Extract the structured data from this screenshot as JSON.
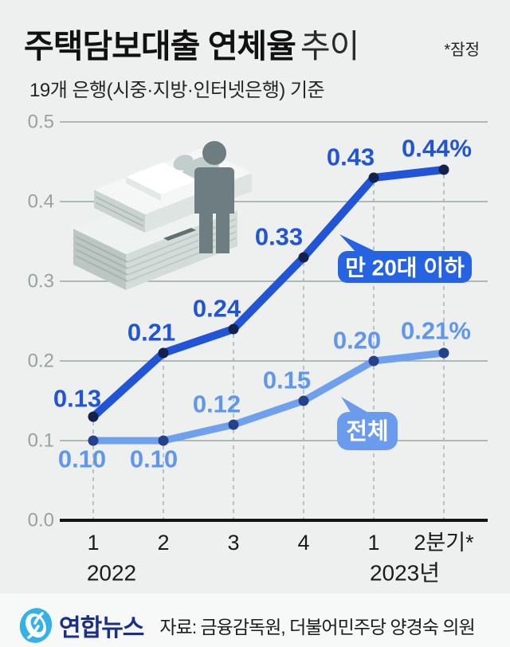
{
  "header": {
    "title_bold": "주택담보대출 연체율",
    "title_light": "추이",
    "note": "*잠정",
    "subtitle": "19개 은행(시중·지방·인터넷은행) 기준"
  },
  "chart_data": {
    "type": "line",
    "unit": "%",
    "categories": [
      "1",
      "2",
      "3",
      "4",
      "1",
      "2분기*"
    ],
    "group_labels": [
      {
        "label": "2022",
        "tick_index": 0
      },
      {
        "label": "2023년",
        "tick_index": 4
      }
    ],
    "y_ticks": [
      0.0,
      0.1,
      0.2,
      0.3,
      0.4,
      0.5
    ],
    "ylim": [
      0.0,
      0.5
    ],
    "grid": true,
    "series": [
      {
        "name": "만 20대 이하",
        "values": [
          0.13,
          0.21,
          0.24,
          0.33,
          0.43,
          0.44
        ],
        "value_labels": [
          "0.13",
          "0.21",
          "0.24",
          "0.33",
          "0.43",
          "0.44%"
        ],
        "line_color": "#2154d6",
        "dot_color": "#13224c",
        "label_color": "#2254d6"
      },
      {
        "name": "전체",
        "values": [
          0.1,
          0.1,
          0.12,
          0.15,
          0.2,
          0.21
        ],
        "value_labels": [
          "0.10",
          "0.10",
          "0.12",
          "0.15",
          "0.20",
          "0.21%"
        ],
        "line_color": "#6fa0ee",
        "dot_color": "#24418c",
        "label_color": "#6096ec"
      }
    ],
    "callouts": [
      {
        "text": "만 20대 이하",
        "fill": "#2563e3",
        "text_color": "#ffffff"
      },
      {
        "text": "전체",
        "fill": "#6b9bed",
        "text_color": "#ffffff"
      }
    ],
    "colors": {
      "background": "#edf0ee",
      "grid_line": "#9aa5a2",
      "axis_line": "#141414",
      "dashed_guide": "#a8bac2",
      "y_tick_text": "#99a29e",
      "x_tick_text": "#1b1b1b"
    }
  },
  "footer": {
    "logo_text": "연합뉴스",
    "source": "자료: 금융감독원, 더불어민주당 양경숙 의원"
  }
}
